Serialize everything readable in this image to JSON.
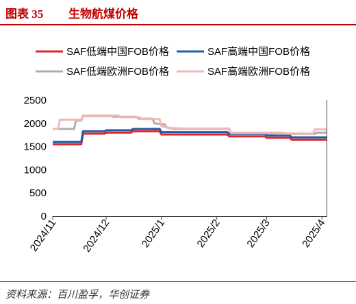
{
  "theme": {
    "accent_color": "#C00000"
  },
  "header": {
    "figure_label": "图表 35"
  },
  "source": "资料来源：百川盈孚，华创证券",
  "chart_data": {
    "type": "line",
    "title": "生物航煤价格",
    "xlabel": "",
    "ylabel": "",
    "ylim": [
      0,
      2500
    ],
    "yticks": [
      0,
      500,
      1000,
      1500,
      2000,
      2500
    ],
    "xlim": [
      "2024-11-01",
      "2025-04-04"
    ],
    "xticks": [
      {
        "date": "2024-11-01",
        "label": "2024/11"
      },
      {
        "date": "2024-12-01",
        "label": "2024/12"
      },
      {
        "date": "2025-01-01",
        "label": "2025/1"
      },
      {
        "date": "2025-02-01",
        "label": "2025/2"
      },
      {
        "date": "2025-03-01",
        "label": "2025/3"
      },
      {
        "date": "2025-04-01",
        "label": "2025/4"
      }
    ],
    "grid": false,
    "legend": "top",
    "series": [
      {
        "name": "SAF低端中国FOB价格",
        "color": "#E0242B",
        "points": [
          [
            "2024-11-01",
            1550
          ],
          [
            "2024-11-17",
            1550
          ],
          [
            "2024-11-18",
            1780
          ],
          [
            "2024-11-30",
            1780
          ],
          [
            "2024-12-01",
            1800
          ],
          [
            "2024-12-15",
            1800
          ],
          [
            "2024-12-16",
            1830
          ],
          [
            "2024-12-31",
            1830
          ],
          [
            "2025-01-01",
            1760
          ],
          [
            "2025-02-07",
            1760
          ],
          [
            "2025-02-08",
            1720
          ],
          [
            "2025-02-28",
            1720
          ],
          [
            "2025-03-01",
            1690
          ],
          [
            "2025-03-14",
            1690
          ],
          [
            "2025-03-15",
            1650
          ],
          [
            "2025-04-04",
            1650
          ]
        ]
      },
      {
        "name": "SAF高端中国FOB价格",
        "color": "#1F5CA8",
        "points": [
          [
            "2024-11-01",
            1600
          ],
          [
            "2024-11-17",
            1600
          ],
          [
            "2024-11-18",
            1830
          ],
          [
            "2024-11-30",
            1830
          ],
          [
            "2024-12-01",
            1850
          ],
          [
            "2024-12-15",
            1850
          ],
          [
            "2024-12-16",
            1880
          ],
          [
            "2024-12-31",
            1880
          ],
          [
            "2025-01-01",
            1810
          ],
          [
            "2025-02-07",
            1810
          ],
          [
            "2025-02-08",
            1770
          ],
          [
            "2025-02-28",
            1770
          ],
          [
            "2025-03-01",
            1740
          ],
          [
            "2025-03-14",
            1740
          ],
          [
            "2025-03-15",
            1700
          ],
          [
            "2025-04-04",
            1700
          ]
        ]
      },
      {
        "name": "SAF低端欧洲FOB价格",
        "color": "#AEAEAE",
        "points": [
          [
            "2024-11-01",
            1880
          ],
          [
            "2024-11-13",
            1880
          ],
          [
            "2024-11-14",
            2060
          ],
          [
            "2024-11-17",
            2060
          ],
          [
            "2024-11-18",
            2160
          ],
          [
            "2024-12-04",
            2160
          ],
          [
            "2024-12-05",
            2140
          ],
          [
            "2024-12-18",
            2140
          ],
          [
            "2024-12-19",
            2100
          ],
          [
            "2024-12-27",
            2100
          ],
          [
            "2024-12-28",
            2000
          ],
          [
            "2025-01-03",
            1980
          ],
          [
            "2025-01-04",
            1910
          ],
          [
            "2025-01-08",
            1880
          ],
          [
            "2025-02-08",
            1880
          ],
          [
            "2025-02-09",
            1790
          ],
          [
            "2025-03-05",
            1790
          ],
          [
            "2025-03-06",
            1770
          ],
          [
            "2025-03-28",
            1770
          ],
          [
            "2025-03-29",
            1800
          ],
          [
            "2025-04-04",
            1800
          ]
        ]
      },
      {
        "name": "SAF高端欧洲FOB价格",
        "color": "#F2B7B7",
        "points": [
          [
            "2024-11-01",
            1880
          ],
          [
            "2024-11-04",
            1880
          ],
          [
            "2024-11-05",
            2080
          ],
          [
            "2024-11-17",
            2080
          ],
          [
            "2024-11-18",
            2170
          ],
          [
            "2024-12-08",
            2170
          ],
          [
            "2024-12-09",
            2130
          ],
          [
            "2024-12-20",
            2130
          ],
          [
            "2024-12-21",
            2090
          ],
          [
            "2024-12-31",
            2090
          ],
          [
            "2025-01-01",
            1940
          ],
          [
            "2025-01-06",
            1900
          ],
          [
            "2025-01-12",
            1890
          ],
          [
            "2025-02-08",
            1890
          ],
          [
            "2025-02-09",
            1800
          ],
          [
            "2025-03-10",
            1800
          ],
          [
            "2025-03-11",
            1790
          ],
          [
            "2025-03-27",
            1780
          ],
          [
            "2025-03-28",
            1870
          ],
          [
            "2025-04-04",
            1870
          ]
        ]
      }
    ]
  }
}
